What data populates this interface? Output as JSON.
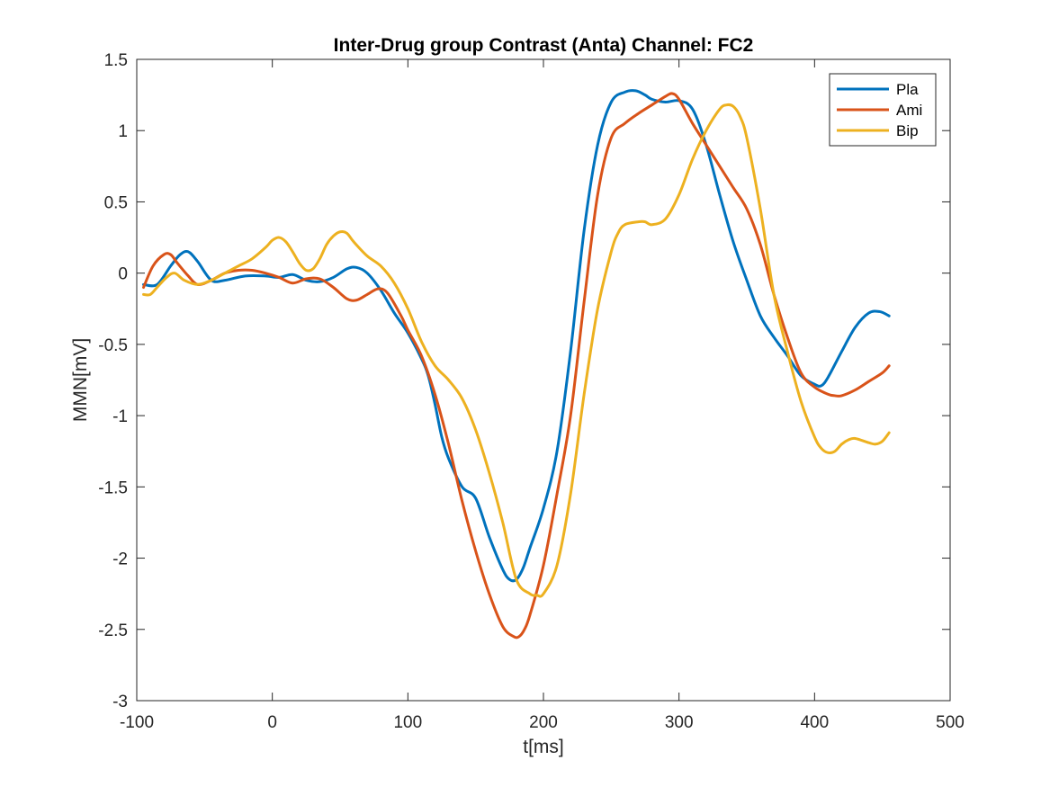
{
  "chart_data": {
    "type": "line",
    "title": "Inter-Drug group Contrast (Anta) Channel: FC2",
    "xlabel": "t[ms]",
    "ylabel": "MMN[mV]",
    "xlim": [
      -100,
      500
    ],
    "ylim": [
      -3,
      1.5
    ],
    "x_ticks": [
      "-100",
      "0",
      "100",
      "200",
      "300",
      "400",
      "500"
    ],
    "y_ticks": [
      "-3",
      "-2.5",
      "-2",
      "-1.5",
      "-1",
      "-0.5",
      "0",
      "0.5",
      "1",
      "1.5"
    ],
    "grid": false,
    "legend_position": "top-right",
    "series": [
      {
        "name": "Pla",
        "color": "#0072BD",
        "x": [
          -95,
          -85,
          -75,
          -68,
          -62,
          -55,
          -45,
          -35,
          -20,
          -5,
          5,
          15,
          25,
          35,
          45,
          55,
          62,
          70,
          80,
          90,
          100,
          110,
          115,
          120,
          125,
          130,
          140,
          150,
          160,
          170,
          175,
          180,
          185,
          190,
          200,
          210,
          220,
          230,
          240,
          250,
          260,
          268,
          275,
          280,
          290,
          300,
          310,
          320,
          330,
          340,
          350,
          360,
          370,
          380,
          390,
          400,
          405,
          410,
          420,
          430,
          440,
          448,
          455
        ],
        "y": [
          -0.08,
          -0.08,
          0.05,
          0.13,
          0.15,
          0.08,
          -0.05,
          -0.05,
          -0.02,
          -0.02,
          -0.03,
          -0.01,
          -0.05,
          -0.06,
          -0.03,
          0.03,
          0.04,
          0.0,
          -0.12,
          -0.28,
          -0.42,
          -0.6,
          -0.72,
          -0.92,
          -1.15,
          -1.3,
          -1.5,
          -1.58,
          -1.85,
          -2.08,
          -2.15,
          -2.15,
          -2.07,
          -1.93,
          -1.65,
          -1.25,
          -0.55,
          0.3,
          0.9,
          1.2,
          1.27,
          1.28,
          1.25,
          1.22,
          1.2,
          1.21,
          1.15,
          0.9,
          0.55,
          0.22,
          -0.05,
          -0.3,
          -0.45,
          -0.58,
          -0.72,
          -0.78,
          -0.79,
          -0.73,
          -0.55,
          -0.38,
          -0.28,
          -0.27,
          -0.3
        ]
      },
      {
        "name": "Ami",
        "color": "#D95319",
        "x": [
          -95,
          -88,
          -80,
          -75,
          -70,
          -62,
          -55,
          -45,
          -35,
          -25,
          -15,
          -5,
          5,
          15,
          25,
          35,
          45,
          55,
          62,
          70,
          78,
          85,
          95,
          100,
          110,
          120,
          130,
          140,
          150,
          160,
          170,
          178,
          182,
          186,
          190,
          200,
          210,
          220,
          230,
          240,
          250,
          260,
          270,
          280,
          290,
          295,
          300,
          310,
          320,
          330,
          340,
          350,
          360,
          370,
          380,
          390,
          400,
          410,
          415,
          420,
          430,
          440,
          450,
          455
        ],
        "y": [
          -0.1,
          0.05,
          0.13,
          0.13,
          0.07,
          -0.02,
          -0.08,
          -0.05,
          0.0,
          0.02,
          0.02,
          0.0,
          -0.03,
          -0.07,
          -0.04,
          -0.04,
          -0.1,
          -0.18,
          -0.19,
          -0.15,
          -0.11,
          -0.14,
          -0.3,
          -0.4,
          -0.58,
          -0.85,
          -1.2,
          -1.6,
          -1.95,
          -2.25,
          -2.48,
          -2.55,
          -2.55,
          -2.5,
          -2.4,
          -2.05,
          -1.55,
          -1.0,
          -0.2,
          0.55,
          0.95,
          1.05,
          1.12,
          1.18,
          1.24,
          1.26,
          1.22,
          1.05,
          0.9,
          0.75,
          0.6,
          0.45,
          0.2,
          -0.15,
          -0.45,
          -0.7,
          -0.8,
          -0.85,
          -0.86,
          -0.86,
          -0.82,
          -0.76,
          -0.7,
          -0.65
        ]
      },
      {
        "name": "Bip",
        "color": "#EDB120",
        "x": [
          -95,
          -90,
          -85,
          -78,
          -72,
          -65,
          -55,
          -45,
          -35,
          -25,
          -15,
          -5,
          0,
          5,
          10,
          15,
          20,
          25,
          30,
          35,
          40,
          45,
          50,
          55,
          60,
          70,
          80,
          90,
          100,
          110,
          120,
          130,
          140,
          150,
          160,
          170,
          180,
          190,
          195,
          200,
          210,
          220,
          230,
          240,
          250,
          255,
          260,
          270,
          275,
          280,
          290,
          300,
          310,
          320,
          330,
          335,
          340,
          345,
          350,
          360,
          370,
          380,
          390,
          400,
          405,
          410,
          415,
          420,
          425,
          430,
          440,
          445,
          450,
          455
        ],
        "y": [
          -0.15,
          -0.15,
          -0.1,
          -0.03,
          0.0,
          -0.05,
          -0.08,
          -0.05,
          0.0,
          0.05,
          0.1,
          0.18,
          0.23,
          0.25,
          0.22,
          0.15,
          0.07,
          0.02,
          0.03,
          0.1,
          0.2,
          0.26,
          0.29,
          0.28,
          0.22,
          0.12,
          0.05,
          -0.07,
          -0.25,
          -0.48,
          -0.65,
          -0.75,
          -0.88,
          -1.1,
          -1.4,
          -1.75,
          -2.15,
          -2.25,
          -2.26,
          -2.25,
          -2.05,
          -1.55,
          -0.85,
          -0.25,
          0.15,
          0.28,
          0.34,
          0.36,
          0.36,
          0.34,
          0.38,
          0.55,
          0.8,
          1.0,
          1.15,
          1.18,
          1.17,
          1.1,
          0.95,
          0.45,
          -0.15,
          -0.55,
          -0.9,
          -1.15,
          -1.23,
          -1.26,
          -1.25,
          -1.2,
          -1.17,
          -1.16,
          -1.19,
          -1.2,
          -1.18,
          -1.12
        ]
      }
    ]
  }
}
